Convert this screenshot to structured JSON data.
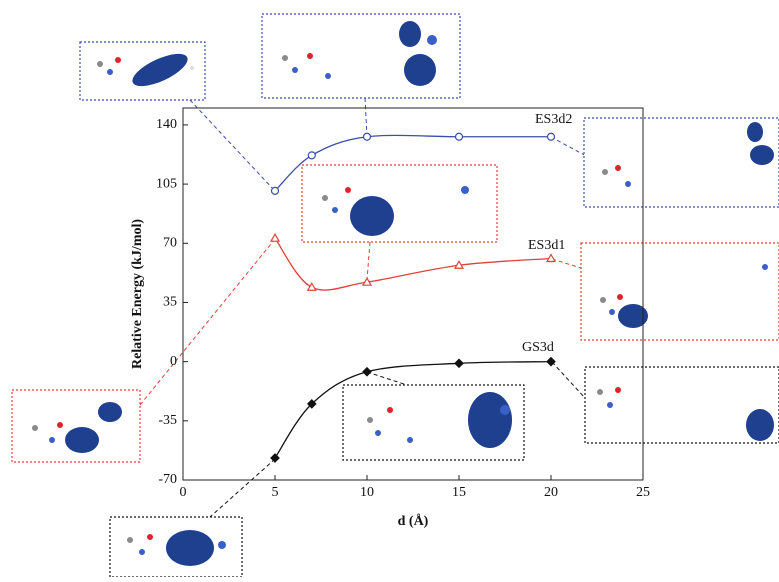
{
  "chart_data": {
    "type": "line",
    "xlabel": "d (Å)",
    "ylabel": "Relative Energy (kJ/mol)",
    "xlim": [
      0,
      25
    ],
    "xticks": [
      0,
      5,
      10,
      15,
      20,
      25
    ],
    "ylim": [
      -70,
      150
    ],
    "yticks": [
      -70,
      -35,
      0,
      35,
      70,
      105,
      140
    ],
    "series": [
      {
        "name": "ES3d2",
        "color": "#3a4fa8",
        "marker": "circle",
        "x": [
          5,
          7,
          10,
          15,
          20
        ],
        "values": [
          101,
          122,
          133,
          133,
          133
        ]
      },
      {
        "name": "ES3d1",
        "color": "#e0413a",
        "marker": "triangle",
        "x": [
          5,
          7,
          10,
          15,
          20
        ],
        "values": [
          73,
          44,
          47,
          57,
          61
        ]
      },
      {
        "name": "GS3d",
        "color": "#111111",
        "marker": "diamond",
        "x": [
          5,
          7,
          10,
          15,
          20
        ],
        "values": [
          -57,
          -25,
          -6,
          -1,
          0
        ]
      }
    ]
  }
}
